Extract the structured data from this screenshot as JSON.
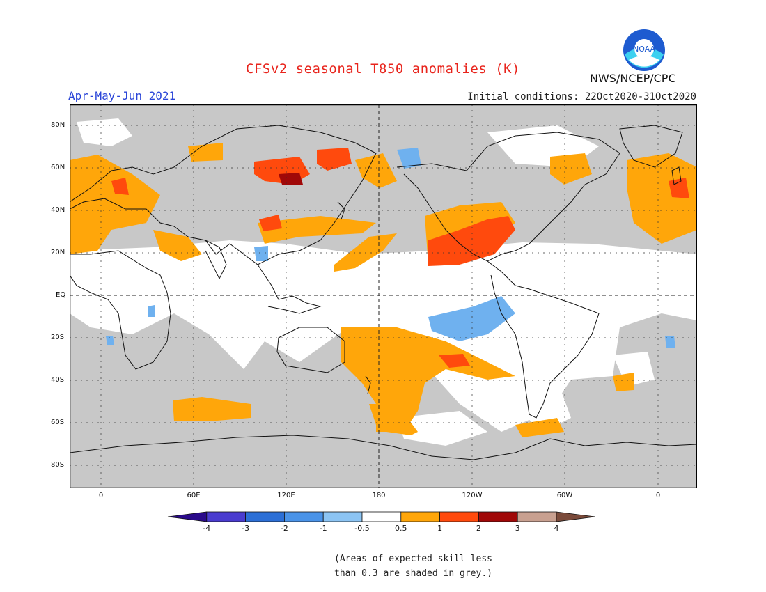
{
  "title": "CFSv2 seasonal T850 anomalies (K)",
  "season": "Apr-May-Jun 2021",
  "initial_conditions": "Initial conditions: 22Oct2020-31Oct2020",
  "agency": "NWS/NCEP/CPC",
  "logo_text": "NOAA",
  "lat_labels": [
    "80N",
    "60N",
    "40N",
    "20N",
    "EQ",
    "20S",
    "40S",
    "60S",
    "80S"
  ],
  "lon_labels": [
    "0",
    "60E",
    "120E",
    "180",
    "120W",
    "60W",
    "0"
  ],
  "colorbar": {
    "ticks": [
      "-4",
      "-3",
      "-2",
      "-1",
      "-0.5",
      "0.5",
      "1",
      "2",
      "3",
      "4"
    ],
    "colors": [
      "#2a0a8a",
      "#4a3ccf",
      "#2c6fd6",
      "#4a93e8",
      "#8cc4f3",
      "#ffffff",
      "#ffa60a",
      "#ff4a0d",
      "#a00808",
      "#c8a090",
      "#7a4a3a"
    ]
  },
  "note_line1": "(Areas of expected skill less",
  "note_line2": "than 0.3 are shaded in grey.)",
  "colors": {
    "grey_low_skill": "#c8c8c8",
    "title": "#e8241c",
    "season": "#2a45d8"
  }
}
